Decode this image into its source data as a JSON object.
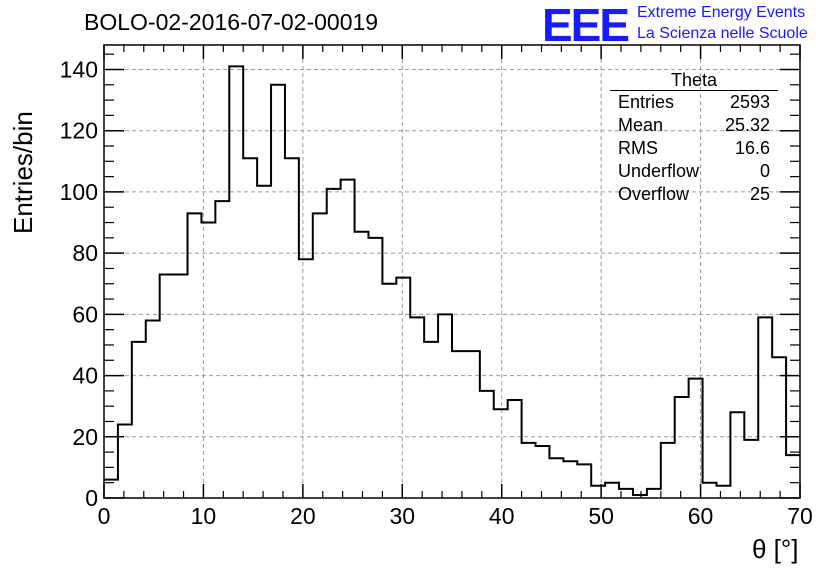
{
  "title": "BOLO-02-2016-07-02-00019",
  "logo": {
    "mark": "EEE",
    "line1": "Extreme Energy Events",
    "line2": "La Scienza nelle Scuole"
  },
  "stats_box": {
    "title": "Theta",
    "rows": [
      {
        "label": "Entries",
        "value": "2593"
      },
      {
        "label": "Mean",
        "value": "25.32"
      },
      {
        "label": "RMS",
        "value": "16.6"
      },
      {
        "label": "Underflow",
        "value": "0"
      },
      {
        "label": "Overflow",
        "value": "25"
      }
    ]
  },
  "chart_data": {
    "type": "bar",
    "style": "step-histogram",
    "xlabel": "θ [°]",
    "ylabel": "Entries/bin",
    "xlim": [
      0,
      70
    ],
    "ylim": [
      0,
      148
    ],
    "grid": true,
    "bin_width": 1.4,
    "bin_edges_start": 0,
    "x_ticks": [
      "0",
      "10",
      "20",
      "30",
      "40",
      "50",
      "60",
      "70"
    ],
    "y_ticks": [
      "0",
      "20",
      "40",
      "60",
      "80",
      "100",
      "120",
      "140"
    ],
    "values": [
      6,
      24,
      51,
      58,
      73,
      73,
      93,
      90,
      97,
      141,
      111,
      102,
      135,
      111,
      78,
      93,
      101,
      104,
      87,
      85,
      70,
      72,
      59,
      51,
      60,
      48,
      48,
      35,
      29,
      32,
      18,
      17,
      13,
      12,
      11,
      4,
      5,
      3,
      1,
      3,
      18,
      33,
      39,
      5,
      4,
      28,
      19,
      59,
      46,
      14
    ],
    "line_color": "#000000",
    "grid_color": "#9a9a9a"
  }
}
